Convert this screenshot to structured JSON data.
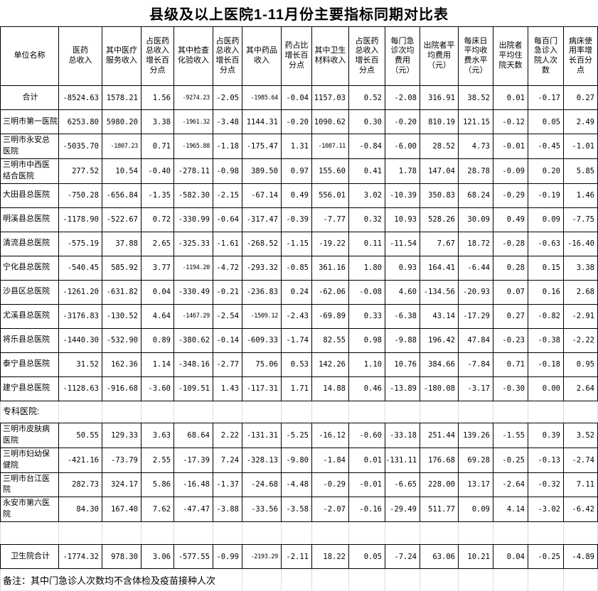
{
  "title": "县级及以上医院1-11月份主要指标同期对比表",
  "table": {
    "columns": [
      "单位名称",
      "医药\n总收入",
      "其中医疗\n服务收入",
      "占医药\n总收入\n增长百\n分点",
      "其中检查\n化验收入",
      "占医药\n总收入\n增长百\n分点",
      "其中药品\n收入",
      "药占比\n增长百\n分点",
      "其中卫生\n材料收入",
      "占医药\n总收入\n增长百\n分点",
      "每门急\n诊次均\n费用\n（元）",
      "出院者平\n均费用\n（元）",
      "每床日\n平均收\n费水平\n（元）",
      "出院者\n平均住\n院天数",
      "每百门\n急诊入\n院人次\n数",
      "病床使\n用率增\n长百分\n点"
    ],
    "rows": [
      {
        "name": "合计",
        "type": "total",
        "values": [
          "-8524.63",
          "1578.21",
          "1.56",
          "-9274.23",
          "-2.05",
          "-1985.64",
          "-0.04",
          "1157.03",
          "0.52",
          "-2.08",
          "316.91",
          "38.52",
          "0.01",
          "-0.17",
          "0.27"
        ]
      },
      {
        "name": "三明市第一医院",
        "type": "data",
        "values": [
          "6253.80",
          "5980.20",
          "3.38",
          "-1961.32",
          "-3.48",
          "1144.31",
          "-0.20",
          "1090.62",
          "0.30",
          "-0.20",
          "810.19",
          "121.15",
          "-0.12",
          "0.05",
          "2.49"
        ]
      },
      {
        "name": "三明市永安总\n医院",
        "type": "data",
        "values": [
          "-5035.70",
          "-1807.23",
          "0.71",
          "-1965.88",
          "-1.18",
          "-175.47",
          "1.31",
          "-1087.11",
          "-0.84",
          "-6.00",
          "28.52",
          "4.73",
          "-0.01",
          "-0.45",
          "-1.01"
        ]
      },
      {
        "name": "三明市中西医\n结合医院",
        "type": "data",
        "values": [
          "277.52",
          "10.54",
          "-0.40",
          "-278.11",
          "-0.98",
          "389.50",
          "0.97",
          "155.60",
          "0.41",
          "1.78",
          "147.04",
          "28.78",
          "-0.09",
          "0.20",
          "5.85"
        ]
      },
      {
        "name": "大田县总医院",
        "type": "data",
        "values": [
          "-750.28",
          "-656.84",
          "-1.35",
          "-582.30",
          "-2.15",
          "-67.14",
          "0.49",
          "556.01",
          "3.02",
          "-10.39",
          "350.83",
          "68.24",
          "-0.29",
          "-0.19",
          "1.46"
        ]
      },
      {
        "name": "明溪县总医院",
        "type": "data",
        "values": [
          "-1178.90",
          "-522.67",
          "0.72",
          "-330.99",
          "-0.64",
          "-317.47",
          "-0.39",
          "-7.77",
          "0.32",
          "10.93",
          "528.26",
          "30.09",
          "0.49",
          "0.09",
          "-7.75"
        ]
      },
      {
        "name": "清流县总医院",
        "type": "data",
        "values": [
          "-575.19",
          "37.88",
          "2.65",
          "-325.33",
          "-1.61",
          "-268.52",
          "-1.15",
          "-19.22",
          "0.11",
          "-11.54",
          "7.67",
          "18.72",
          "-0.28",
          "-0.63",
          "-16.40"
        ]
      },
      {
        "name": "宁化县总医院",
        "type": "data",
        "values": [
          "-540.45",
          "585.92",
          "3.77",
          "-1194.20",
          "-4.72",
          "-293.32",
          "-0.85",
          "361.16",
          "1.80",
          "0.93",
          "164.41",
          "-6.44",
          "0.28",
          "0.15",
          "3.38"
        ]
      },
      {
        "name": "沙县区总医院",
        "type": "data",
        "values": [
          "-1261.20",
          "-631.82",
          "0.04",
          "-330.49",
          "-0.21",
          "-236.83",
          "0.24",
          "-62.06",
          "-0.08",
          "4.60",
          "-134.56",
          "-20.93",
          "0.07",
          "0.16",
          "2.68"
        ]
      },
      {
        "name": "尤溪县总医院",
        "type": "data",
        "values": [
          "-3176.83",
          "-130.52",
          "4.64",
          "-1467.29",
          "-2.54",
          "-1509.12",
          "-2.43",
          "-69.89",
          "0.33",
          "-6.38",
          "43.14",
          "-17.29",
          "0.27",
          "-0.82",
          "-2.91"
        ]
      },
      {
        "name": "将乐县总医院",
        "type": "data",
        "values": [
          "-1440.30",
          "-532.90",
          "0.89",
          "-380.62",
          "-0.14",
          "-609.33",
          "-1.74",
          "82.55",
          "0.98",
          "-9.88",
          "196.42",
          "47.84",
          "-0.23",
          "-0.38",
          "-2.22"
        ]
      },
      {
        "name": "泰宁县总医院",
        "type": "data",
        "values": [
          "31.52",
          "162.36",
          "1.14",
          "-348.16",
          "-2.77",
          "75.06",
          "0.53",
          "142.26",
          "1.10",
          "10.76",
          "384.66",
          "-7.84",
          "0.71",
          "-0.18",
          "0.95"
        ]
      },
      {
        "name": "建宁县总医院",
        "type": "data",
        "values": [
          "-1128.63",
          "-916.68",
          "-3.60",
          "-109.51",
          "1.43",
          "-117.31",
          "1.71",
          "14.88",
          "0.46",
          "-13.89",
          "-180.08",
          "-3.17",
          "-0.30",
          "0.00",
          "2.64"
        ]
      },
      {
        "name": "专科医院:",
        "type": "section",
        "values": [
          "",
          "",
          "",
          "",
          "",
          "",
          "",
          "",
          "",
          "",
          "",
          "",
          "",
          "",
          ""
        ]
      },
      {
        "name": "三明市皮肤病\n医院",
        "type": "data",
        "values": [
          "50.55",
          "129.33",
          "3.63",
          "68.64",
          "2.22",
          "-131.31",
          "-5.25",
          "-16.12",
          "-0.60",
          "-33.18",
          "251.44",
          "139.26",
          "-1.55",
          "0.39",
          "3.52"
        ]
      },
      {
        "name": "三明市妇幼保\n健院",
        "type": "data",
        "values": [
          "-421.16",
          "-73.79",
          "2.55",
          "-17.39",
          "7.24",
          "-328.13",
          "-9.80",
          "-1.84",
          "0.01",
          "-131.11",
          "176.68",
          "69.28",
          "-0.25",
          "-0.13",
          "-2.74"
        ]
      },
      {
        "name": "三明市台江医\n院",
        "type": "data",
        "values": [
          "282.73",
          "324.17",
          "5.86",
          "-16.48",
          "-1.37",
          "-24.68",
          "-4.48",
          "-0.29",
          "-0.01",
          "-6.65",
          "228.00",
          "13.17",
          "-2.64",
          "-0.32",
          "7.11"
        ]
      },
      {
        "name": "永安市第六医\n院",
        "type": "data",
        "values": [
          "84.30",
          "167.40",
          "7.62",
          "-47.47",
          "-3.88",
          "-33.56",
          "-3.58",
          "-2.07",
          "-0.16",
          "-29.49",
          "511.77",
          "0.09",
          "4.14",
          "-3.02",
          "-6.42"
        ]
      },
      {
        "name": "",
        "type": "blank",
        "values": [
          "",
          "",
          "",
          "",
          "",
          "",
          "",
          "",
          "",
          "",
          "",
          "",
          "",
          "",
          ""
        ]
      },
      {
        "name": "卫生院合计",
        "type": "total",
        "values": [
          "-1774.32",
          "978.30",
          "3.06",
          "-577.55",
          "-0.99",
          "-2193.29",
          "-2.11",
          "18.22",
          "0.05",
          "-7.24",
          "63.06",
          "10.21",
          "0.04",
          "-0.25",
          "-4.89"
        ]
      }
    ],
    "note": "备注：其中门急诊人次数均不含体检及疫苗接种人次"
  }
}
